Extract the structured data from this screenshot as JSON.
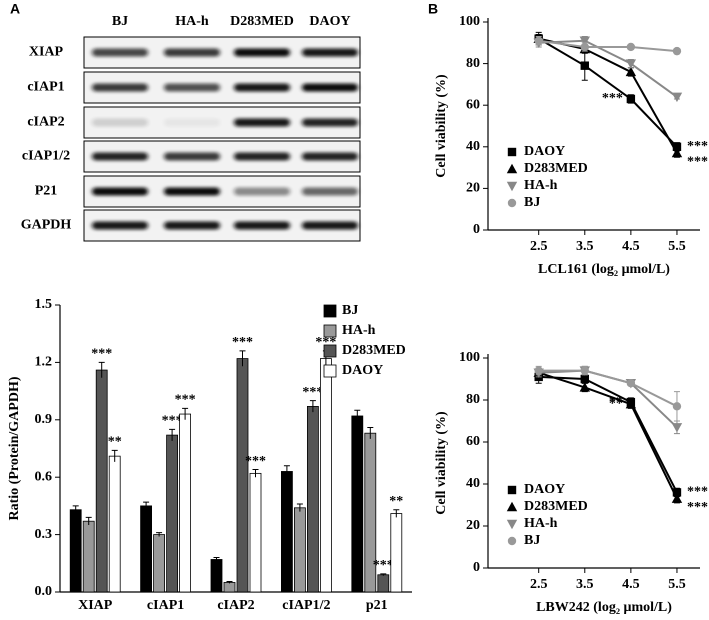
{
  "blot": {
    "panel_label": "A",
    "lanes": [
      "BJ",
      "HA-h",
      "D283MED",
      "DAOY"
    ],
    "proteins": [
      "XIAP",
      "cIAP1",
      "cIAP2",
      "cIAP1/2",
      "P21",
      "GAPDH"
    ]
  },
  "chart_data": [
    {
      "type": "bar",
      "y_label": "Ratio (Protein/GAPDH)",
      "categories": [
        "XIAP",
        "cIAP1",
        "cIAP2",
        "cIAP1/2",
        "p21"
      ],
      "ylim": [
        0,
        1.5
      ],
      "yticks": [
        {
          "value": 0,
          "label": "0.0"
        },
        0.3,
        0.6,
        0.9,
        1.2,
        1.5
      ],
      "series": [
        {
          "name": "BJ",
          "color": "#000000",
          "values": [
            0.43,
            0.45,
            0.17,
            0.63,
            0.92
          ],
          "errors": [
            0.02,
            0.02,
            0.01,
            0.03,
            0.03
          ],
          "significance": [
            null,
            null,
            null,
            null,
            null
          ]
        },
        {
          "name": "HA-h",
          "color": "#999999",
          "values": [
            0.37,
            0.3,
            0.05,
            0.44,
            0.83
          ],
          "errors": [
            0.02,
            0.01,
            0.005,
            0.02,
            0.03
          ],
          "significance": [
            null,
            null,
            null,
            null,
            null
          ]
        },
        {
          "name": "D283MED",
          "color": "#555555",
          "values": [
            1.16,
            0.82,
            1.22,
            0.97,
            0.09
          ],
          "errors": [
            0.04,
            0.03,
            0.04,
            0.03,
            0.005
          ],
          "significance": [
            "***",
            "***",
            "***",
            "***",
            "***"
          ]
        },
        {
          "name": "DAOY",
          "color": "#ffffff",
          "values": [
            0.71,
            0.93,
            0.62,
            1.22,
            0.41
          ],
          "errors": [
            0.03,
            0.03,
            0.02,
            0.04,
            0.02
          ],
          "significance": [
            "**",
            "***",
            "***",
            "***",
            "**"
          ]
        }
      ]
    },
    {
      "type": "line",
      "panel_label": "B",
      "x_label": "LCL161 (log₂ μmol/L)",
      "y_label": "Cell viability (%)",
      "x": [
        2.5,
        3.5,
        4.5,
        5.5
      ],
      "xlim": [
        1.4,
        6
      ],
      "xticks": [
        2.5,
        3.5,
        4.5,
        5.5
      ],
      "ylim": [
        0,
        100
      ],
      "yticks": [
        0,
        20,
        40,
        60,
        80,
        100
      ],
      "series": [
        {
          "name": "DAOY",
          "color": "#000000",
          "marker": "square",
          "values": [
            92,
            79,
            63,
            40
          ],
          "errors": [
            3,
            7,
            2,
            2
          ],
          "significance": [
            null,
            null,
            "***",
            "***"
          ]
        },
        {
          "name": "D283MED",
          "color": "#000000",
          "marker": "triangle",
          "values": [
            92,
            87,
            76,
            37
          ],
          "errors": [
            2,
            2,
            2,
            2
          ],
          "significance": [
            null,
            null,
            null,
            "***"
          ]
        },
        {
          "name": "HA-h",
          "color": "#888888",
          "marker": "triangle-down",
          "values": [
            90,
            91,
            80,
            64
          ],
          "errors": [
            2,
            2,
            2,
            1
          ],
          "significance": [
            null,
            null,
            null,
            null
          ]
        },
        {
          "name": "BJ",
          "color": "#999999",
          "marker": "circle",
          "values": [
            91,
            88,
            88,
            86
          ],
          "errors": [
            2,
            2,
            1,
            1
          ],
          "significance": [
            null,
            null,
            null,
            null
          ]
        }
      ]
    },
    {
      "type": "line",
      "x_label": "LBW242 (log₂ μmol/L)",
      "y_label": "Cell viability (%)",
      "x": [
        2.5,
        3.5,
        4.5,
        5.5
      ],
      "xlim": [
        1.4,
        6
      ],
      "xticks": [
        2.5,
        3.5,
        4.5,
        5.5
      ],
      "ylim": [
        0,
        100
      ],
      "yticks": [
        0,
        20,
        40,
        60,
        80,
        100
      ],
      "series": [
        {
          "name": "DAOY",
          "color": "#000000",
          "marker": "square",
          "values": [
            91,
            90,
            79,
            36
          ],
          "errors": [
            3,
            2,
            2,
            2
          ],
          "significance": [
            null,
            null,
            "**",
            "***"
          ]
        },
        {
          "name": "D283MED",
          "color": "#000000",
          "marker": "triangle",
          "values": [
            93,
            86,
            78,
            33
          ],
          "errors": [
            2,
            2,
            2,
            2
          ],
          "significance": [
            null,
            null,
            "**",
            "***"
          ]
        },
        {
          "name": "HA-h",
          "color": "#888888",
          "marker": "triangle-down",
          "values": [
            93,
            94,
            88,
            67
          ],
          "errors": [
            2,
            2,
            1,
            3
          ],
          "significance": [
            null,
            null,
            null,
            null
          ]
        },
        {
          "name": "BJ",
          "color": "#999999",
          "marker": "circle",
          "values": [
            94,
            94,
            88,
            77
          ],
          "errors": [
            2,
            2,
            1,
            7
          ],
          "significance": [
            null,
            null,
            null,
            null
          ]
        }
      ]
    }
  ]
}
